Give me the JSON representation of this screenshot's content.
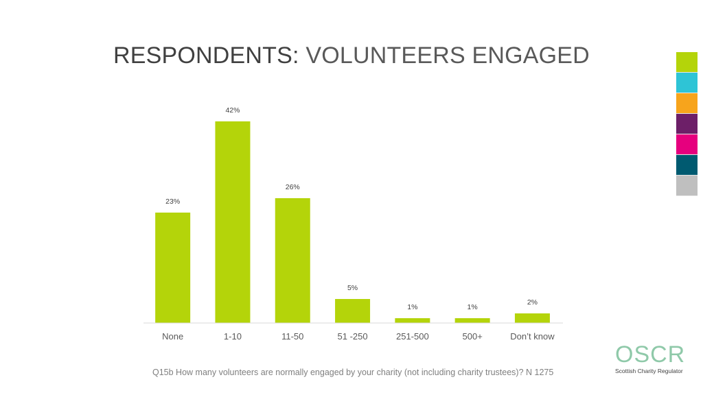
{
  "header": {
    "title_part1": "RESPONDENTS:",
    "title_part2": "VOLUNTEERS ENGAGED"
  },
  "colors": {
    "bar": "#b4d40a",
    "swatches": [
      "#b4d40a",
      "#2ec4d6",
      "#f7a41c",
      "#6d1f68",
      "#e6007e",
      "#005a70",
      "#bfbfbf"
    ]
  },
  "chart_data": {
    "type": "bar",
    "categories": [
      "None",
      "1-10",
      "11-50",
      "51 -250",
      "251-500",
      "500+",
      "Don’t know"
    ],
    "values": [
      23,
      42,
      26,
      5,
      1,
      1,
      2
    ],
    "data_labels": [
      "23%",
      "42%",
      "26%",
      "5%",
      "1%",
      "1%",
      "2%"
    ],
    "ylim": [
      0,
      45
    ],
    "grid": false,
    "legend": "none"
  },
  "footnote": "Q15b How many volunteers are normally engaged by your charity (not including charity trustees)? N 1275",
  "logo": {
    "mark": "OSCR",
    "subtitle": "Scottish Charity Regulator"
  }
}
